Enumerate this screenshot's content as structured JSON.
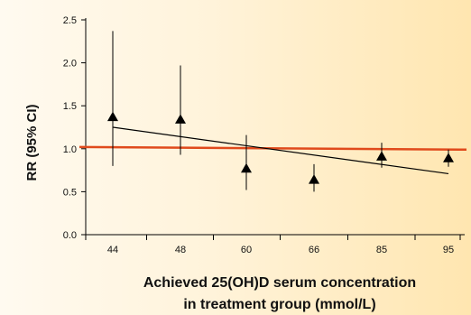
{
  "chart_data": {
    "type": "scatter",
    "xlabel_line1": "Achieved 25(OH)D serum concentration",
    "xlabel_line2": "in treatment group (mmol/L)",
    "ylabel": "RR (95% CI)",
    "categories": [
      "44",
      "48",
      "60",
      "66",
      "85",
      "95"
    ],
    "ylim": [
      0.0,
      2.5
    ],
    "yticks": [
      "0.0",
      "0.5",
      "1.0",
      "1.5",
      "2.0",
      "2.5"
    ],
    "points": [
      {
        "x": "44",
        "rr": 1.37,
        "ci_low": 0.8,
        "ci_high": 2.37
      },
      {
        "x": "48",
        "rr": 1.34,
        "ci_low": 0.93,
        "ci_high": 1.97
      },
      {
        "x": "60",
        "rr": 0.77,
        "ci_low": 0.52,
        "ci_high": 1.16
      },
      {
        "x": "66",
        "rr": 0.64,
        "ci_low": 0.5,
        "ci_high": 0.82
      },
      {
        "x": "85",
        "rr": 0.91,
        "ci_low": 0.78,
        "ci_high": 1.07
      },
      {
        "x": "95",
        "rr": 0.89,
        "ci_low": 0.79,
        "ci_high": 0.99
      }
    ],
    "reference_line": {
      "y": 1.02,
      "color": "#e04a1c"
    },
    "trend_line": {
      "from_x": "44",
      "to_x": "95",
      "y_start": 1.25,
      "y_end": 0.71,
      "color": "#000000"
    },
    "grid": false,
    "marker": "triangle-up",
    "marker_color": "#000000"
  }
}
